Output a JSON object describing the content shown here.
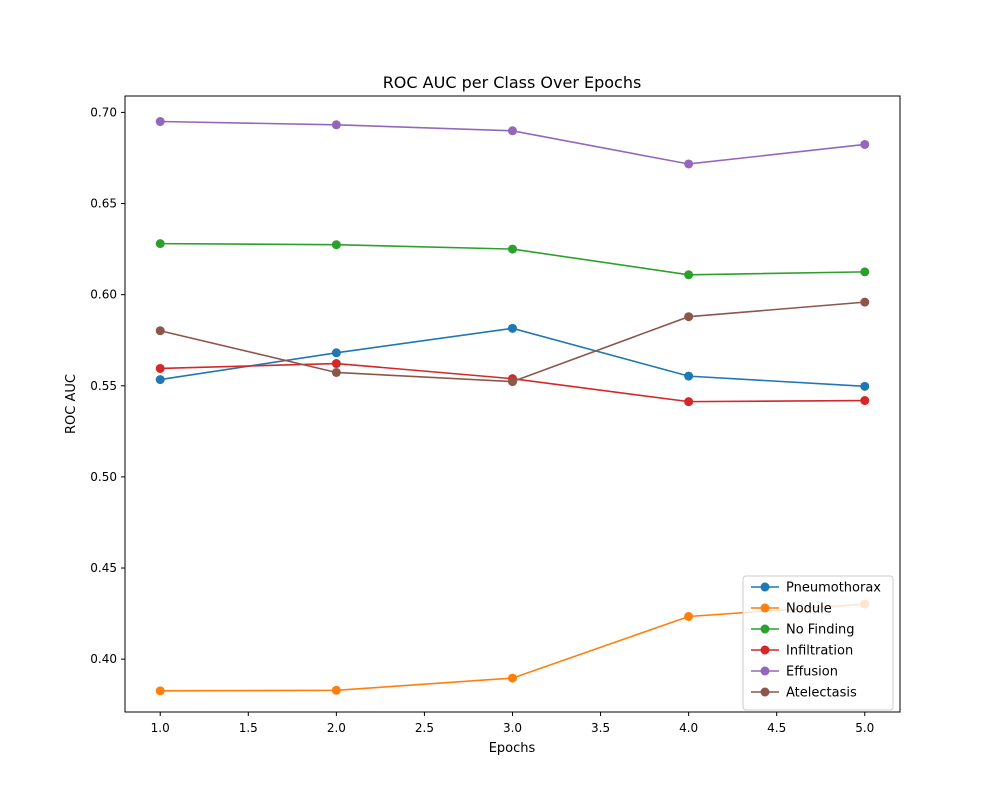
{
  "chart_data": {
    "type": "line",
    "title": "ROC AUC per Class Over Epochs",
    "xlabel": "Epochs",
    "ylabel": "ROC AUC",
    "xlim": [
      0.8,
      5.2
    ],
    "ylim": [
      0.371,
      0.709
    ],
    "x": [
      1.0,
      2.0,
      3.0,
      4.0,
      5.0
    ],
    "xticks": [
      "1.0",
      "1.5",
      "2.0",
      "2.5",
      "3.0",
      "3.5",
      "4.0",
      "4.5",
      "5.0"
    ],
    "yticks": [
      "0.40",
      "0.45",
      "0.50",
      "0.55",
      "0.60",
      "0.65",
      "0.70"
    ],
    "grid": false,
    "legend_position": "lower-right",
    "markers": "circle",
    "series": [
      {
        "name": "Pneumothorax",
        "color": "#1f77b4",
        "values": [
          0.5534,
          0.5681,
          0.5815,
          0.5553,
          0.5497
        ]
      },
      {
        "name": "Nodule",
        "color": "#ff7f0e",
        "values": [
          0.3826,
          0.3829,
          0.3896,
          0.4234,
          0.4302
        ]
      },
      {
        "name": "No Finding",
        "color": "#2ca02c",
        "values": [
          0.628,
          0.6274,
          0.625,
          0.6109,
          0.6125
        ]
      },
      {
        "name": "Infiltration",
        "color": "#d62728",
        "values": [
          0.5595,
          0.5622,
          0.5539,
          0.5413,
          0.5419
        ]
      },
      {
        "name": "Effusion",
        "color": "#9467bd",
        "values": [
          0.695,
          0.6932,
          0.6899,
          0.6717,
          0.6824
        ]
      },
      {
        "name": "Atelectasis",
        "color": "#8c564b",
        "values": [
          0.5802,
          0.5573,
          0.5523,
          0.5879,
          0.5959
        ]
      }
    ]
  }
}
